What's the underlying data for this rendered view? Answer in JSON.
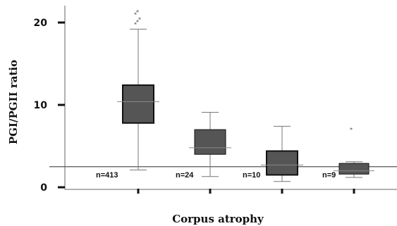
{
  "chart_data": {
    "type": "box",
    "title": "",
    "xlabel": "Corpus atrophy",
    "ylabel": "PGI/PGII ratio",
    "ylim": [
      0,
      21.5
    ],
    "yticks": [
      "0",
      "10",
      "20"
    ],
    "reference_line": 2.5,
    "groups": [
      {
        "label": "n=413",
        "min": 2.1,
        "q1": 7.8,
        "median": 10.4,
        "q3": 12.4,
        "max": 19.2,
        "outliers": [
          19.8,
          20.1,
          20.4,
          21.0,
          21.3
        ]
      },
      {
        "label": "n=24",
        "min": 1.3,
        "q1": 4.0,
        "median": 4.8,
        "q3": 7.0,
        "max": 9.1,
        "outliers": []
      },
      {
        "label": "n=10",
        "min": 0.7,
        "q1": 1.5,
        "median": 2.7,
        "q3": 4.4,
        "max": 7.4,
        "outliers": []
      },
      {
        "label": "n=9",
        "min": 1.2,
        "q1": 1.6,
        "median": 2.0,
        "q3": 2.9,
        "max": 3.1,
        "outliers": [
          7.0
        ]
      }
    ]
  }
}
